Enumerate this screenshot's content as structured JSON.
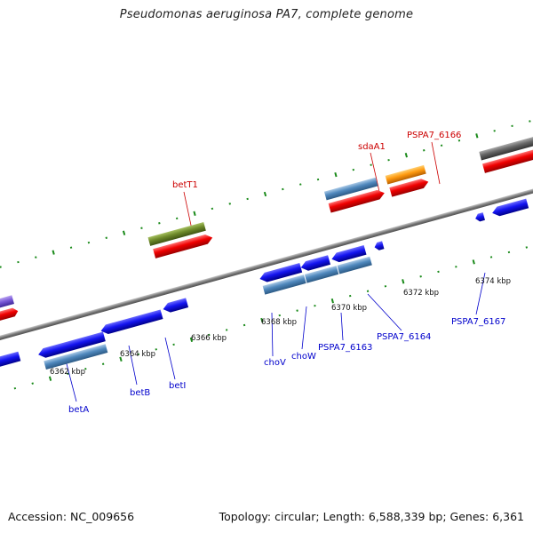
{
  "title": "Pseudomonas aeruginosa PA7, complete genome",
  "footer": {
    "accession": "Accession: NC_009656",
    "summary": "Topology: circular; Length: 6,588,339 bp; Genes: 6,361"
  },
  "colors": {
    "backbone": "#8a8a8a",
    "forward_label": "#cc0000",
    "reverse_label": "#0000cc",
    "ruler_dots": "#1a8a1a"
  },
  "ticks": [
    {
      "label": "6362 kbp"
    },
    {
      "label": "6364 kbp"
    },
    {
      "label": "6366 kbp"
    },
    {
      "label": "6368 kbp"
    },
    {
      "label": "6370 kbp"
    },
    {
      "label": "6372 kbp"
    },
    {
      "label": "6374 kbp"
    }
  ],
  "gene_labels": [
    {
      "label": "betT1",
      "strand": "forward"
    },
    {
      "label": "sdaA1",
      "strand": "forward"
    },
    {
      "label": "PSPA7_6166",
      "strand": "forward"
    },
    {
      "label": "betA",
      "strand": "reverse"
    },
    {
      "label": "betB",
      "strand": "reverse"
    },
    {
      "label": "betI",
      "strand": "reverse"
    },
    {
      "label": "choV",
      "strand": "reverse"
    },
    {
      "label": "choW",
      "strand": "reverse"
    },
    {
      "label": "PSPA7_6163",
      "strand": "reverse"
    },
    {
      "label": "PSPA7_6164",
      "strand": "reverse"
    },
    {
      "label": "PSPA7_6167",
      "strand": "reverse"
    }
  ]
}
